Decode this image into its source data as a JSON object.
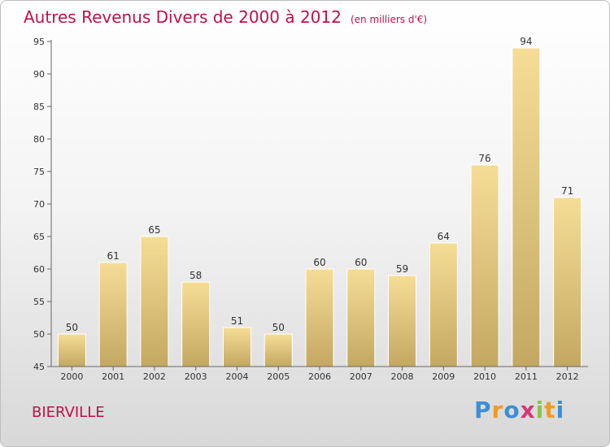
{
  "chart_data": {
    "type": "bar",
    "title": "Autres Revenus Divers de 2000 à 2012",
    "subtitle": "(en milliers d'€)",
    "categories": [
      "2000",
      "2001",
      "2002",
      "2003",
      "2004",
      "2005",
      "2006",
      "2007",
      "2008",
      "2009",
      "2010",
      "2011",
      "2012"
    ],
    "values": [
      50,
      61,
      65,
      58,
      51,
      50,
      60,
      60,
      59,
      64,
      76,
      94,
      71
    ],
    "ylim": [
      45,
      95
    ],
    "yticks": [
      45,
      50,
      55,
      60,
      65,
      70,
      75,
      80,
      85,
      90,
      95
    ],
    "grid": false,
    "xlabel": "",
    "ylabel": ""
  },
  "footer": {
    "commune": "BIERVILLE",
    "logo_letters": [
      "P",
      "r",
      "o",
      "x",
      "i",
      "t",
      "i"
    ]
  },
  "colors": {
    "title": "#c0104c",
    "bar_top": "#f6dd96",
    "bar_bottom": "#c4a862",
    "logo": [
      "#3a8fd6",
      "#f29a1f",
      "#3a8fd6",
      "#d43a7a",
      "#8bc34a",
      "#f29a1f",
      "#3a8fd6"
    ]
  }
}
